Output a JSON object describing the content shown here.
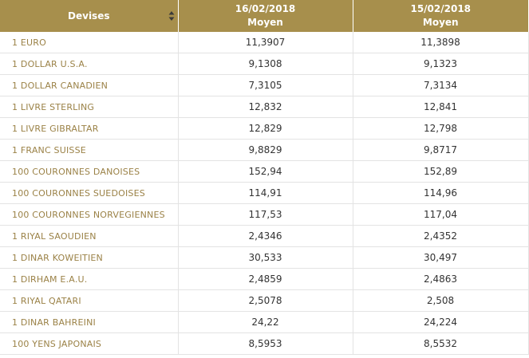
{
  "header": {
    "currency_label": "Devises",
    "col1_date": "16/02/2018",
    "col1_sub": "Moyen",
    "col2_date": "15/02/2018",
    "col2_sub": "Moyen",
    "sort_icon": "sort-icon"
  },
  "colors": {
    "header_bg": "#a78f4c",
    "currency_text": "#9b8247",
    "rate_text": "#333333"
  },
  "rows": [
    {
      "currency": "1 EURO",
      "d1": "11,3907",
      "d2": "11,3898"
    },
    {
      "currency": "1 DOLLAR U.S.A.",
      "d1": "9,1308",
      "d2": "9,1323"
    },
    {
      "currency": "1 DOLLAR CANADIEN",
      "d1": "7,3105",
      "d2": "7,3134"
    },
    {
      "currency": "1 LIVRE STERLING",
      "d1": "12,832",
      "d2": "12,841"
    },
    {
      "currency": "1 LIVRE GIBRALTAR",
      "d1": "12,829",
      "d2": "12,798"
    },
    {
      "currency": "1 FRANC SUISSE",
      "d1": "9,8829",
      "d2": "9,8717"
    },
    {
      "currency": "100 COURONNES DANOISES",
      "d1": "152,94",
      "d2": "152,89"
    },
    {
      "currency": "100 COURONNES SUEDOISES",
      "d1": "114,91",
      "d2": "114,96"
    },
    {
      "currency": "100 COURONNES NORVEGIENNES",
      "d1": "117,53",
      "d2": "117,04"
    },
    {
      "currency": "1 RIYAL SAOUDIEN",
      "d1": "2,4346",
      "d2": "2,4352"
    },
    {
      "currency": "1 DINAR KOWEITIEN",
      "d1": "30,533",
      "d2": "30,497"
    },
    {
      "currency": "1 DIRHAM E.A.U.",
      "d1": "2,4859",
      "d2": "2,4863"
    },
    {
      "currency": "1 RIYAL QATARI",
      "d1": "2,5078",
      "d2": "2,508"
    },
    {
      "currency": "1 DINAR BAHREINI",
      "d1": "24,22",
      "d2": "24,224"
    },
    {
      "currency": "100 YENS JAPONAIS",
      "d1": "8,5953",
      "d2": "8,5532"
    }
  ]
}
